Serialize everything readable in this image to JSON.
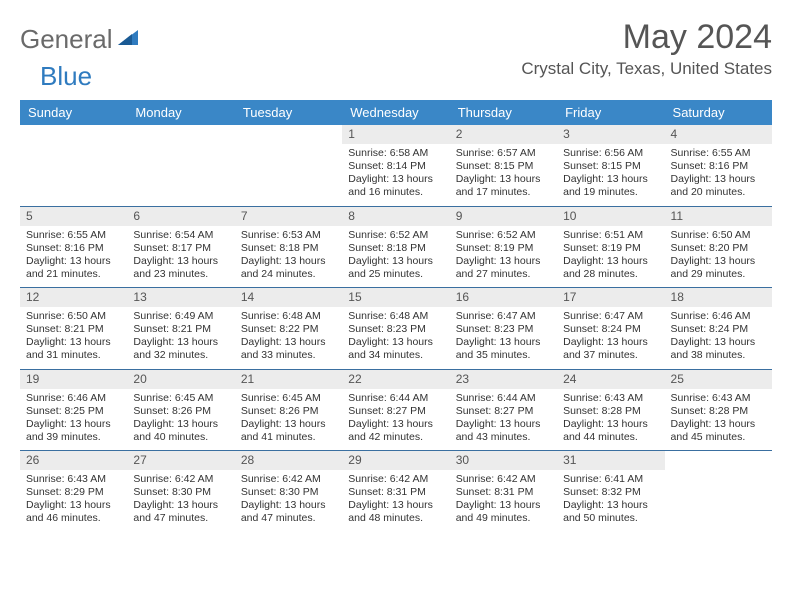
{
  "logo": {
    "text1": "General",
    "text2": "Blue",
    "color1": "#6a6a6a",
    "color2": "#2f7bbf",
    "icon_color": "#2f7bbf"
  },
  "title": "May 2024",
  "location": "Crystal City, Texas, United States",
  "colors": {
    "header_bg": "#3a87c7",
    "header_text": "#ffffff",
    "daynum_bg": "#ececec",
    "row_border": "#3a6fa0",
    "body_text": "#333333"
  },
  "day_headers": [
    "Sunday",
    "Monday",
    "Tuesday",
    "Wednesday",
    "Thursday",
    "Friday",
    "Saturday"
  ],
  "weeks": [
    [
      null,
      null,
      null,
      {
        "n": "1",
        "sr": "6:58 AM",
        "ss": "8:14 PM",
        "dl1": "Daylight: 13 hours",
        "dl2": "and 16 minutes."
      },
      {
        "n": "2",
        "sr": "6:57 AM",
        "ss": "8:15 PM",
        "dl1": "Daylight: 13 hours",
        "dl2": "and 17 minutes."
      },
      {
        "n": "3",
        "sr": "6:56 AM",
        "ss": "8:15 PM",
        "dl1": "Daylight: 13 hours",
        "dl2": "and 19 minutes."
      },
      {
        "n": "4",
        "sr": "6:55 AM",
        "ss": "8:16 PM",
        "dl1": "Daylight: 13 hours",
        "dl2": "and 20 minutes."
      }
    ],
    [
      {
        "n": "5",
        "sr": "6:55 AM",
        "ss": "8:16 PM",
        "dl1": "Daylight: 13 hours",
        "dl2": "and 21 minutes."
      },
      {
        "n": "6",
        "sr": "6:54 AM",
        "ss": "8:17 PM",
        "dl1": "Daylight: 13 hours",
        "dl2": "and 23 minutes."
      },
      {
        "n": "7",
        "sr": "6:53 AM",
        "ss": "8:18 PM",
        "dl1": "Daylight: 13 hours",
        "dl2": "and 24 minutes."
      },
      {
        "n": "8",
        "sr": "6:52 AM",
        "ss": "8:18 PM",
        "dl1": "Daylight: 13 hours",
        "dl2": "and 25 minutes."
      },
      {
        "n": "9",
        "sr": "6:52 AM",
        "ss": "8:19 PM",
        "dl1": "Daylight: 13 hours",
        "dl2": "and 27 minutes."
      },
      {
        "n": "10",
        "sr": "6:51 AM",
        "ss": "8:19 PM",
        "dl1": "Daylight: 13 hours",
        "dl2": "and 28 minutes."
      },
      {
        "n": "11",
        "sr": "6:50 AM",
        "ss": "8:20 PM",
        "dl1": "Daylight: 13 hours",
        "dl2": "and 29 minutes."
      }
    ],
    [
      {
        "n": "12",
        "sr": "6:50 AM",
        "ss": "8:21 PM",
        "dl1": "Daylight: 13 hours",
        "dl2": "and 31 minutes."
      },
      {
        "n": "13",
        "sr": "6:49 AM",
        "ss": "8:21 PM",
        "dl1": "Daylight: 13 hours",
        "dl2": "and 32 minutes."
      },
      {
        "n": "14",
        "sr": "6:48 AM",
        "ss": "8:22 PM",
        "dl1": "Daylight: 13 hours",
        "dl2": "and 33 minutes."
      },
      {
        "n": "15",
        "sr": "6:48 AM",
        "ss": "8:23 PM",
        "dl1": "Daylight: 13 hours",
        "dl2": "and 34 minutes."
      },
      {
        "n": "16",
        "sr": "6:47 AM",
        "ss": "8:23 PM",
        "dl1": "Daylight: 13 hours",
        "dl2": "and 35 minutes."
      },
      {
        "n": "17",
        "sr": "6:47 AM",
        "ss": "8:24 PM",
        "dl1": "Daylight: 13 hours",
        "dl2": "and 37 minutes."
      },
      {
        "n": "18",
        "sr": "6:46 AM",
        "ss": "8:24 PM",
        "dl1": "Daylight: 13 hours",
        "dl2": "and 38 minutes."
      }
    ],
    [
      {
        "n": "19",
        "sr": "6:46 AM",
        "ss": "8:25 PM",
        "dl1": "Daylight: 13 hours",
        "dl2": "and 39 minutes."
      },
      {
        "n": "20",
        "sr": "6:45 AM",
        "ss": "8:26 PM",
        "dl1": "Daylight: 13 hours",
        "dl2": "and 40 minutes."
      },
      {
        "n": "21",
        "sr": "6:45 AM",
        "ss": "8:26 PM",
        "dl1": "Daylight: 13 hours",
        "dl2": "and 41 minutes."
      },
      {
        "n": "22",
        "sr": "6:44 AM",
        "ss": "8:27 PM",
        "dl1": "Daylight: 13 hours",
        "dl2": "and 42 minutes."
      },
      {
        "n": "23",
        "sr": "6:44 AM",
        "ss": "8:27 PM",
        "dl1": "Daylight: 13 hours",
        "dl2": "and 43 minutes."
      },
      {
        "n": "24",
        "sr": "6:43 AM",
        "ss": "8:28 PM",
        "dl1": "Daylight: 13 hours",
        "dl2": "and 44 minutes."
      },
      {
        "n": "25",
        "sr": "6:43 AM",
        "ss": "8:28 PM",
        "dl1": "Daylight: 13 hours",
        "dl2": "and 45 minutes."
      }
    ],
    [
      {
        "n": "26",
        "sr": "6:43 AM",
        "ss": "8:29 PM",
        "dl1": "Daylight: 13 hours",
        "dl2": "and 46 minutes."
      },
      {
        "n": "27",
        "sr": "6:42 AM",
        "ss": "8:30 PM",
        "dl1": "Daylight: 13 hours",
        "dl2": "and 47 minutes."
      },
      {
        "n": "28",
        "sr": "6:42 AM",
        "ss": "8:30 PM",
        "dl1": "Daylight: 13 hours",
        "dl2": "and 47 minutes."
      },
      {
        "n": "29",
        "sr": "6:42 AM",
        "ss": "8:31 PM",
        "dl1": "Daylight: 13 hours",
        "dl2": "and 48 minutes."
      },
      {
        "n": "30",
        "sr": "6:42 AM",
        "ss": "8:31 PM",
        "dl1": "Daylight: 13 hours",
        "dl2": "and 49 minutes."
      },
      {
        "n": "31",
        "sr": "6:41 AM",
        "ss": "8:32 PM",
        "dl1": "Daylight: 13 hours",
        "dl2": "and 50 minutes."
      },
      null
    ]
  ],
  "labels": {
    "sunrise_prefix": "Sunrise: ",
    "sunset_prefix": "Sunset: "
  }
}
